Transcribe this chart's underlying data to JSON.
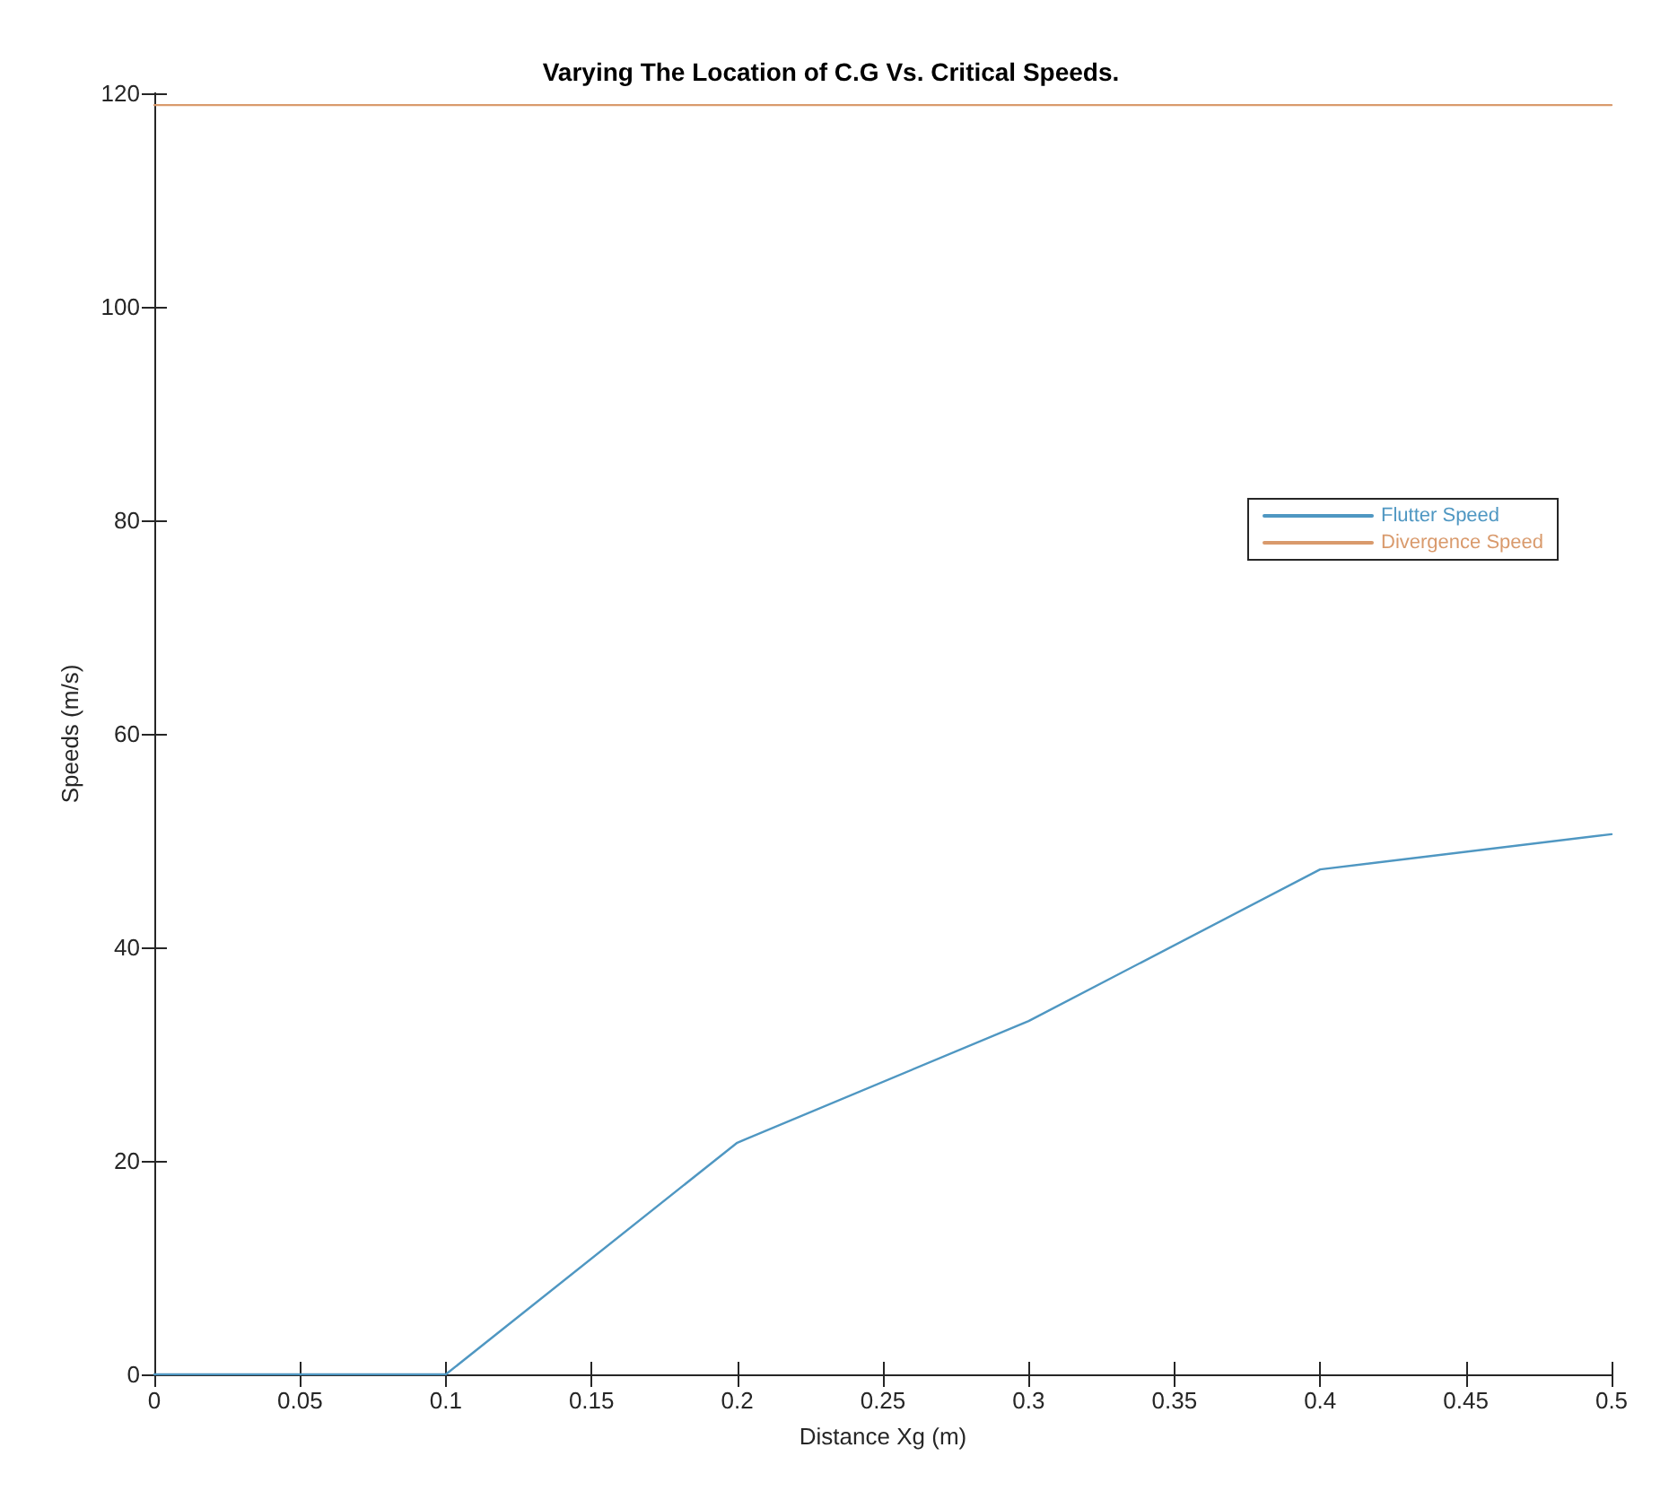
{
  "chart_data": {
    "type": "line",
    "title": "Varying The Location of C.G Vs. Critical Speeds.",
    "xlabel": "Distance Xg (m)",
    "ylabel": "Speeds (m/s)",
    "x": [
      0,
      0.1,
      0.2,
      0.3,
      0.4,
      0.5
    ],
    "series": [
      {
        "name": "Flutter Speed",
        "color": "#4f97c2",
        "values": [
          0,
          0,
          21.7,
          33.1,
          47.3,
          50.6
        ]
      },
      {
        "name": "Divergence Speed",
        "color": "#d99a6c",
        "values": [
          118.9,
          118.9,
          118.9,
          118.9,
          118.9,
          118.9
        ]
      }
    ],
    "xlim": [
      0,
      0.5
    ],
    "xticks": [
      0,
      0.05,
      0.1,
      0.15,
      0.2,
      0.25,
      0.3,
      0.35,
      0.4,
      0.45,
      0.5
    ],
    "ylim": [
      0,
      120
    ],
    "yticks": [
      0,
      20,
      40,
      60,
      80,
      100,
      120
    ],
    "grid": false,
    "legend": "right",
    "marker": "none",
    "line_style": "solid"
  }
}
